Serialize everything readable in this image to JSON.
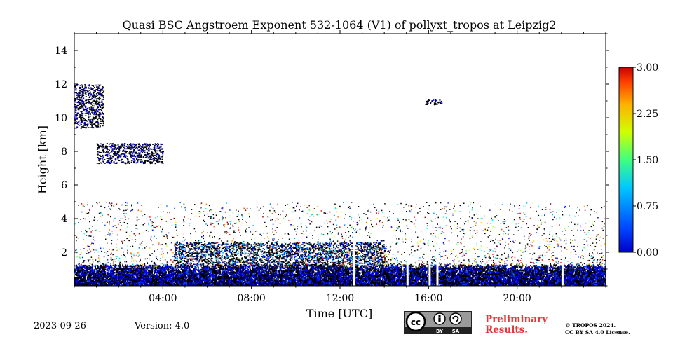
{
  "chart_data": {
    "type": "heatmap",
    "title": "Quasi BSC Angstroem Exponent 532-1064 (V1) of pollyxt_tropos at Leipzig2",
    "xlabel": "Time [UTC]",
    "ylabel": "Height [km]",
    "xlim_hours": [
      0,
      24
    ],
    "ylim_km": [
      0,
      15
    ],
    "x_ticks": [
      {
        "hour": 4,
        "label": "04:00"
      },
      {
        "hour": 8,
        "label": "08:00"
      },
      {
        "hour": 12,
        "label": "12:00"
      },
      {
        "hour": 16,
        "label": "16:00"
      },
      {
        "hour": 20,
        "label": "20:00"
      }
    ],
    "y_ticks": [
      {
        "km": 2,
        "label": "2"
      },
      {
        "km": 4,
        "label": "4"
      },
      {
        "km": 6,
        "label": "6"
      },
      {
        "km": 8,
        "label": "8"
      },
      {
        "km": 10,
        "label": "10"
      },
      {
        "km": 12,
        "label": "12"
      },
      {
        "km": 14,
        "label": "14"
      }
    ],
    "colorbar": {
      "min": 0.0,
      "max": 3.0,
      "ticks": [
        "0.00",
        "0.75",
        "1.50",
        "2.25",
        "3.00"
      ],
      "colormap": "jet"
    },
    "features": [
      {
        "name": "near-surface aerosol layer",
        "hour_start": 0,
        "hour_end": 24,
        "km_bottom": 0.0,
        "km_top": 1.3,
        "value_range": [
          0.0,
          0.6
        ]
      },
      {
        "name": "residual layer",
        "hour_start": 4.5,
        "hour_end": 14,
        "km_bottom": 1.2,
        "km_top": 2.6,
        "value_range": [
          0.0,
          1.0
        ]
      },
      {
        "name": "cirrus",
        "hour_start": 0,
        "hour_end": 1.3,
        "km_bottom": 9.4,
        "km_top": 12.0,
        "value_range": [
          0.0,
          0.3
        ]
      },
      {
        "name": "elevated layer",
        "hour_start": 1.0,
        "hour_end": 4.0,
        "km_bottom": 7.3,
        "km_top": 8.5,
        "value_range": [
          0.0,
          0.3
        ]
      },
      {
        "name": "upper cloud",
        "hour_start": 15.8,
        "hour_end": 16.6,
        "km_bottom": 10.8,
        "km_top": 11.1,
        "value_range": [
          0.0,
          0.3
        ]
      }
    ],
    "data_gaps_hours": [
      12.65,
      15.05,
      16.05,
      16.4,
      22.05
    ]
  },
  "footer": {
    "date": "2023-09-26",
    "version": "Version: 4.0",
    "license_badge": {
      "icon": "cc-by-sa-icon",
      "by_label": "BY",
      "sa_label": "SA"
    },
    "preliminary_line1": "Preliminary",
    "preliminary_line2": "Results.",
    "copyright_line1": "© TROPOS 2024.",
    "copyright_line2": "CC BY SA 4.0 License."
  },
  "colors": {
    "preliminary": "#e8343c",
    "badge_gray": "#9a9a9a",
    "badge_dark": "#222222"
  }
}
